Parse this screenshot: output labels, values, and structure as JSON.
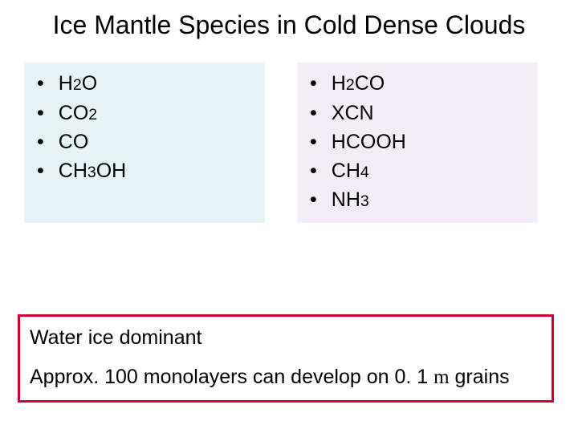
{
  "title": "Ice Mantle Species in Cold Dense Clouds",
  "left_col": {
    "bg": "#e6f3f7",
    "items": [
      {
        "pre": "H",
        "sub": "2",
        "post": "O"
      },
      {
        "pre": "CO",
        "sub": "2",
        "post": ""
      },
      {
        "pre": "CO",
        "sub": "",
        "post": ""
      },
      {
        "pre": "CH",
        "sub": "3",
        "post": "OH"
      }
    ]
  },
  "right_col": {
    "bg": "#f4ecf7",
    "items": [
      {
        "pre": "H",
        "sub": "2",
        "post": "CO"
      },
      {
        "pre": "XCN",
        "sub": "",
        "post": ""
      },
      {
        "pre": "HCOOH",
        "sub": "",
        "post": ""
      },
      {
        "pre": "CH",
        "sub": "4",
        "post": ""
      },
      {
        "pre": "NH",
        "sub": "3",
        "post": ""
      }
    ]
  },
  "box": {
    "border_color": "#cc0033",
    "line1": "Water ice dominant",
    "line2_a": "Approx. 100 monolayers can develop on 0. 1 ",
    "line2_mu": "m",
    "line2_b": " grains"
  },
  "colors": {
    "text": "#000000",
    "background": "#ffffff"
  },
  "fontsizes": {
    "title": 32,
    "body": 25
  }
}
